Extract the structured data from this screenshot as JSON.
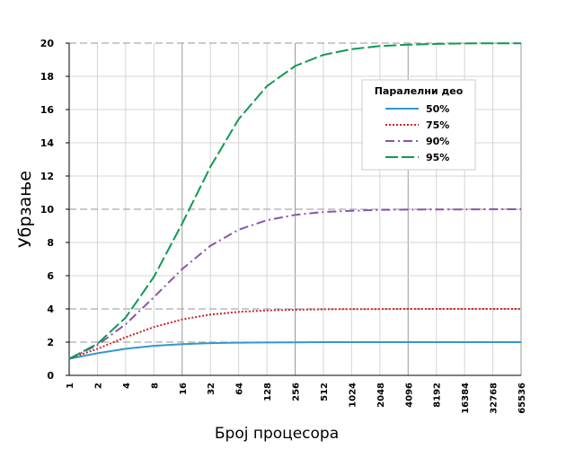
{
  "chart_data": {
    "type": "line",
    "xlabel": "Број процесора",
    "ylabel": "Убрзање",
    "x_scale": "log2",
    "x": [
      1,
      2,
      4,
      8,
      16,
      32,
      64,
      128,
      256,
      512,
      1024,
      2048,
      4096,
      8192,
      16384,
      32768,
      65536
    ],
    "x_tick_labels": [
      "1",
      "2",
      "4",
      "8",
      "16",
      "32",
      "64",
      "128",
      "256",
      "512",
      "1024",
      "2048",
      "4096",
      "8192",
      "16384",
      "32768",
      "65536"
    ],
    "ylim": [
      0,
      20
    ],
    "y_ticks": [
      0,
      2,
      4,
      6,
      8,
      10,
      12,
      14,
      16,
      18,
      20
    ],
    "grid": true,
    "legend": {
      "title": "Паралелни део",
      "placement": "top-right"
    },
    "series": [
      {
        "name": "50%",
        "color": "#3399cc",
        "dash": "solid",
        "values": [
          1.0,
          1.33,
          1.6,
          1.78,
          1.88,
          1.94,
          1.97,
          1.98,
          1.99,
          2.0,
          2.0,
          2.0,
          2.0,
          2.0,
          2.0,
          2.0,
          2.0
        ]
      },
      {
        "name": "75%",
        "color": "#cc2222",
        "dash": "dotted",
        "values": [
          1.0,
          1.6,
          2.29,
          2.91,
          3.37,
          3.66,
          3.82,
          3.91,
          3.95,
          3.98,
          3.99,
          3.99,
          4.0,
          4.0,
          4.0,
          4.0,
          4.0
        ]
      },
      {
        "name": "90%",
        "color": "#8855aa",
        "dash": "dashdot",
        "values": [
          1.0,
          1.82,
          3.08,
          4.71,
          6.4,
          7.8,
          8.77,
          9.34,
          9.66,
          9.83,
          9.91,
          9.96,
          9.98,
          9.99,
          9.99,
          10.0,
          10.0
        ]
      },
      {
        "name": "95%",
        "color": "#119955",
        "dash": "longdash",
        "values": [
          1.0,
          1.9,
          3.48,
          5.93,
          9.14,
          12.55,
          15.42,
          17.41,
          18.62,
          19.29,
          19.64,
          19.82,
          19.91,
          19.95,
          19.98,
          19.99,
          19.99
        ]
      }
    ]
  }
}
